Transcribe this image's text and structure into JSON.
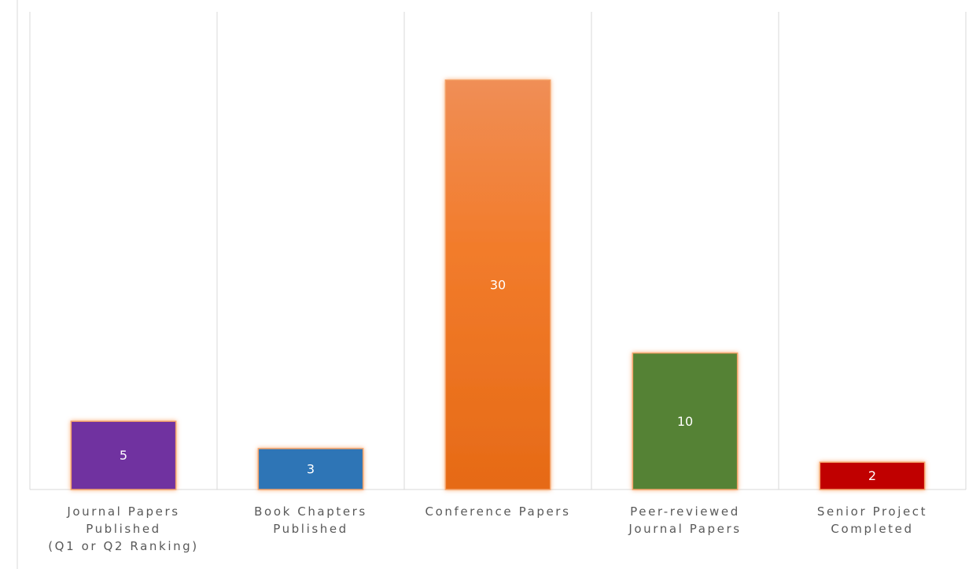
{
  "chart_data": {
    "type": "bar",
    "categories": [
      [
        "Journal Papers",
        "Published",
        "(Q1 or Q2 Ranking)"
      ],
      [
        "Book Chapters",
        "Published"
      ],
      [
        "Conference Papers"
      ],
      [
        "Peer-reviewed",
        "Journal Papers"
      ],
      [
        "Senior Project",
        "Completed"
      ]
    ],
    "values": [
      5,
      3,
      30,
      10,
      2
    ],
    "colors": [
      "#7030a0",
      "#2e75b6",
      "#ee7a2a",
      "#548235",
      "#c00000"
    ],
    "ylim": [
      0,
      35
    ]
  }
}
